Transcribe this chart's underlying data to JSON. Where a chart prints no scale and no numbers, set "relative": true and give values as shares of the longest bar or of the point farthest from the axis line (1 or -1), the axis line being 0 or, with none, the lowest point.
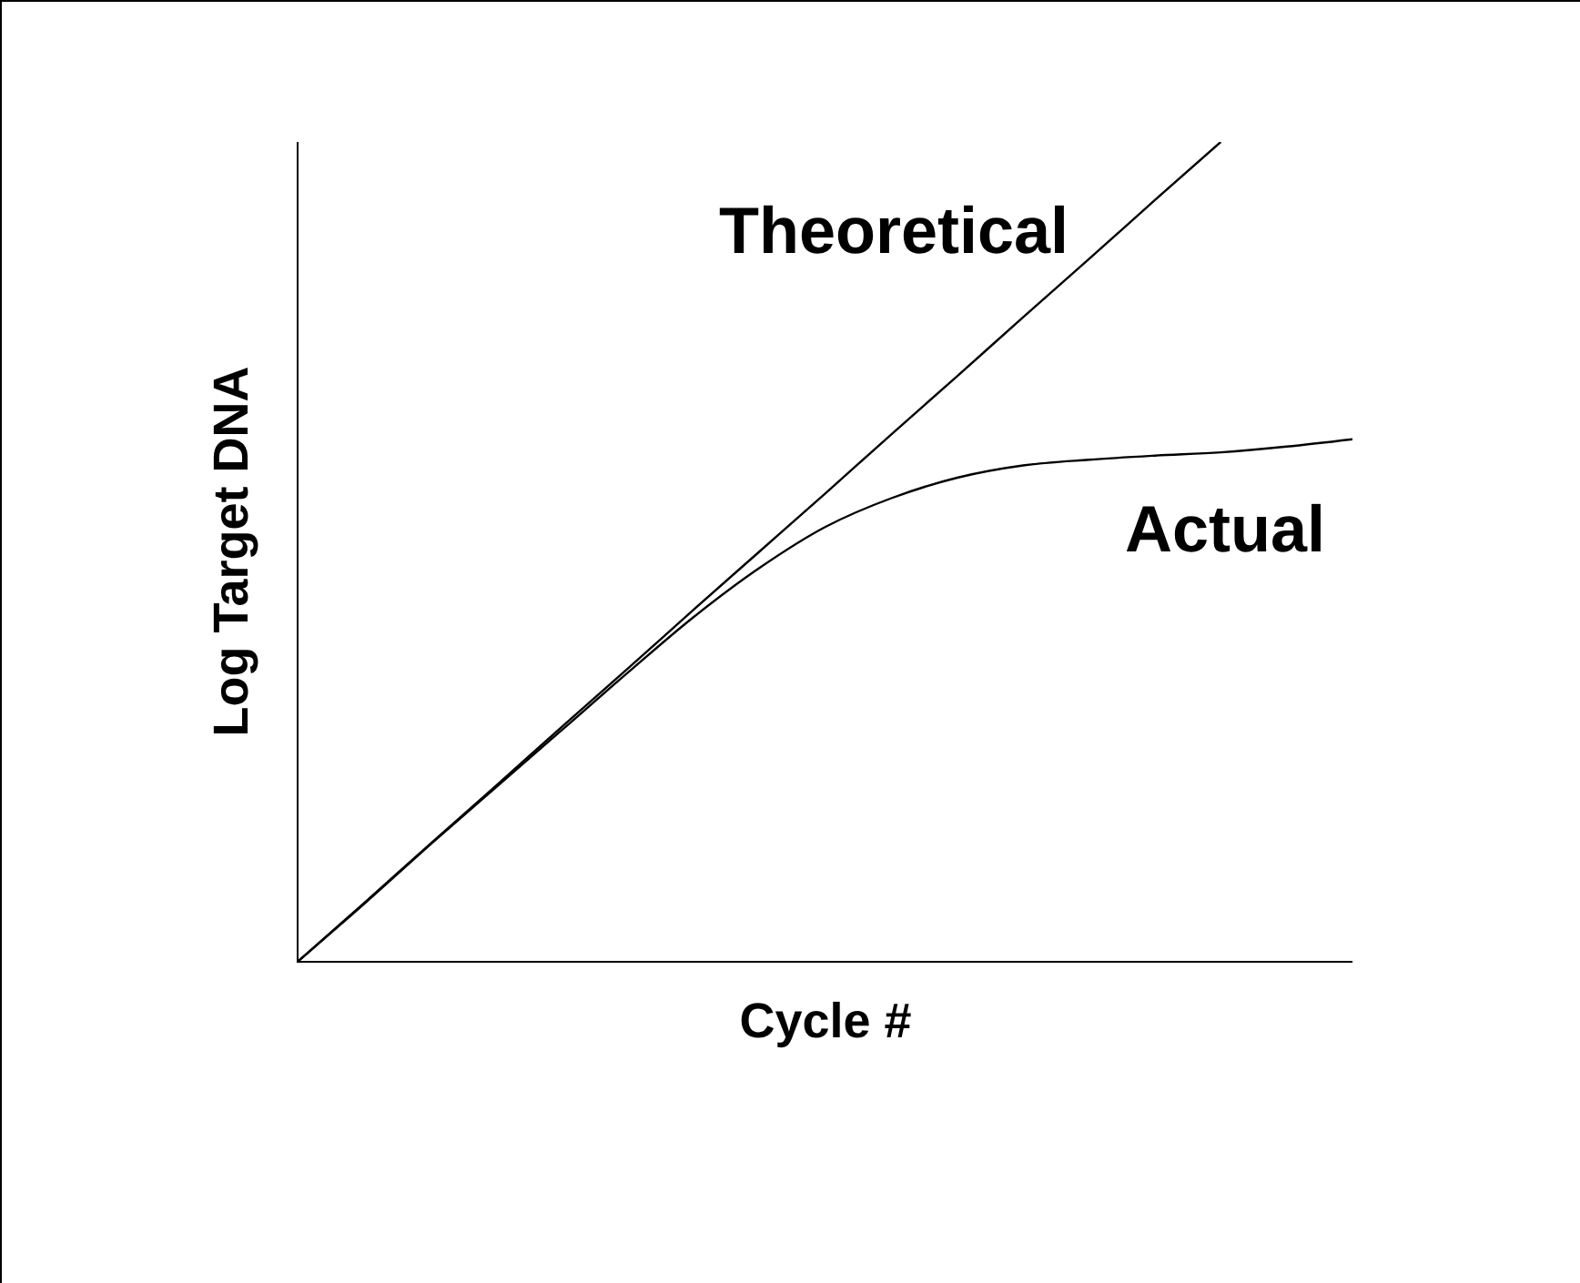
{
  "chart_data": {
    "type": "line",
    "relative": true,
    "xlabel": "Cycle #",
    "ylabel": "Log Target DNA",
    "categories": [
      null,
      null,
      null,
      null,
      null,
      null,
      null,
      null,
      null,
      null,
      null,
      null,
      null,
      null,
      null,
      null,
      null
    ],
    "series": [
      {
        "name": "Theoretical",
        "color": "#000000",
        "values": [
          0,
          0.071,
          0.143,
          0.214,
          0.286,
          0.357,
          0.429,
          0.5,
          0.571,
          0.643,
          0.714,
          0.786,
          0.857,
          0.929,
          1,
          null,
          null
        ]
      },
      {
        "name": "Actual",
        "color": "#000000",
        "values": [
          0,
          0.07,
          0.142,
          0.212,
          0.282,
          0.352,
          0.42,
          0.48,
          0.53,
          0.565,
          0.59,
          0.605,
          0.612,
          0.617,
          0.621,
          0.628,
          0.637
        ]
      }
    ],
    "grid": false,
    "legend": false,
    "marker": "none",
    "line_style": "solid"
  }
}
